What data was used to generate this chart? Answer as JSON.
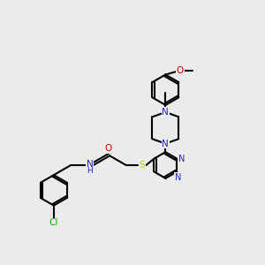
{
  "background_color": "#ebebeb",
  "figsize": [
    3.0,
    3.0
  ],
  "dpi": 100,
  "colors": {
    "N": "#2222cc",
    "O": "#cc0000",
    "S": "#cccc00",
    "Cl": "#00bb00",
    "C": "#000000",
    "H": "#000000"
  },
  "bg": "#ebebeb"
}
